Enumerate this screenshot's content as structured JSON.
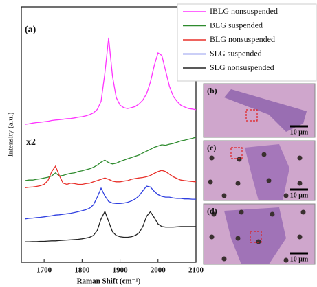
{
  "chart_data": {
    "type": "line",
    "panel_label": "(a)",
    "annotation": "x2",
    "xlabel": "Raman Shift (cm⁻¹)",
    "ylabel": "Intensity (a.u.)",
    "xlim": [
      1640,
      2100
    ],
    "xticks": [
      1700,
      1800,
      1900,
      2000,
      2100
    ],
    "ylim": [
      0,
      10
    ],
    "x": [
      1650,
      1660,
      1670,
      1680,
      1690,
      1700,
      1710,
      1720,
      1730,
      1740,
      1750,
      1760,
      1770,
      1780,
      1790,
      1800,
      1810,
      1820,
      1830,
      1840,
      1850,
      1860,
      1870,
      1880,
      1890,
      1900,
      1910,
      1920,
      1930,
      1940,
      1950,
      1960,
      1970,
      1980,
      1990,
      2000,
      2010,
      2020,
      2030,
      2040,
      2050,
      2060,
      2070,
      2080,
      2090,
      2100
    ],
    "series": [
      {
        "name": "IBLG nonsuspended",
        "color": "#ff33ff",
        "values": [
          5.4,
          5.42,
          5.45,
          5.47,
          5.48,
          5.5,
          5.52,
          5.55,
          5.57,
          5.58,
          5.6,
          5.62,
          5.63,
          5.65,
          5.68,
          5.7,
          5.73,
          5.78,
          5.85,
          5.98,
          6.3,
          7.4,
          8.79,
          7.3,
          6.45,
          6.15,
          6.05,
          6.02,
          6.05,
          6.1,
          6.2,
          6.35,
          6.6,
          7.05,
          7.7,
          8.2,
          8.1,
          7.5,
          6.9,
          6.5,
          6.3,
          6.15,
          6.08,
          6.02,
          6.0,
          5.97
        ]
      },
      {
        "name": "BLG suspended",
        "color": "#2e8b2e",
        "values": [
          3.2,
          3.22,
          3.22,
          3.25,
          3.27,
          3.3,
          3.33,
          3.38,
          3.5,
          3.38,
          3.4,
          3.45,
          3.48,
          3.5,
          3.55,
          3.58,
          3.62,
          3.66,
          3.72,
          3.8,
          3.92,
          4.0,
          3.9,
          3.85,
          3.88,
          3.95,
          4.0,
          4.05,
          4.1,
          4.15,
          4.2,
          4.28,
          4.35,
          4.42,
          4.5,
          4.55,
          4.6,
          4.58,
          4.62,
          4.65,
          4.7,
          4.75,
          4.78,
          4.82,
          4.85,
          4.9
        ]
      },
      {
        "name": "BLG nonsuspended",
        "color": "#e8302a",
        "values": [
          2.92,
          2.94,
          2.95,
          2.97,
          3.0,
          3.05,
          3.2,
          3.55,
          3.76,
          3.4,
          3.1,
          3.05,
          3.1,
          3.08,
          3.05,
          3.05,
          3.08,
          3.1,
          3.15,
          3.2,
          3.25,
          3.3,
          3.25,
          3.18,
          3.15,
          3.15,
          3.18,
          3.2,
          3.25,
          3.28,
          3.3,
          3.32,
          3.35,
          3.4,
          3.48,
          3.55,
          3.6,
          3.55,
          3.45,
          3.35,
          3.28,
          3.22,
          3.2,
          3.18,
          3.16,
          3.15
        ]
      },
      {
        "name": "SLG suspended",
        "color": "#3040e0",
        "values": [
          1.7,
          1.72,
          1.73,
          1.75,
          1.76,
          1.78,
          1.8,
          1.82,
          1.85,
          1.86,
          1.88,
          1.9,
          1.92,
          1.95,
          1.98,
          2.02,
          2.06,
          2.12,
          2.25,
          2.55,
          2.9,
          2.6,
          2.38,
          2.32,
          2.3,
          2.3,
          2.32,
          2.35,
          2.4,
          2.48,
          2.6,
          2.8,
          2.98,
          2.95,
          2.78,
          2.65,
          2.58,
          2.55,
          2.55,
          2.52,
          2.5,
          2.5,
          2.48,
          2.48,
          2.47,
          2.47
        ]
      },
      {
        "name": "SLG nonsuspended",
        "color": "#222222",
        "values": [
          0.8,
          0.8,
          0.81,
          0.81,
          0.82,
          0.82,
          0.83,
          0.84,
          0.84,
          0.85,
          0.86,
          0.87,
          0.88,
          0.89,
          0.9,
          0.92,
          0.95,
          0.98,
          1.05,
          1.25,
          1.7,
          1.99,
          1.6,
          1.2,
          1.05,
          1.0,
          0.98,
          0.98,
          1.0,
          1.05,
          1.15,
          1.4,
          1.8,
          1.98,
          1.75,
          1.5,
          1.4,
          1.38,
          1.38,
          1.38,
          1.39,
          1.4,
          1.4,
          1.4,
          1.4,
          1.4
        ]
      }
    ]
  },
  "panels": [
    {
      "label": "(b)",
      "scale_bar": "10 μm"
    },
    {
      "label": "(c)",
      "scale_bar": "10 μm"
    },
    {
      "label": "(d)",
      "scale_bar": "10 μm"
    }
  ]
}
